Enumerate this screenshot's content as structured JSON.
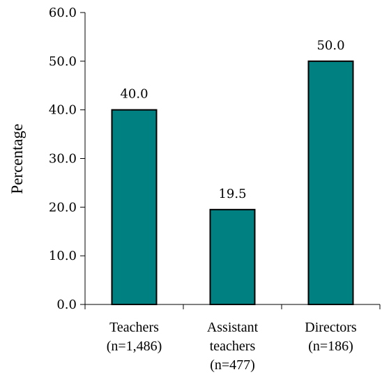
{
  "chart_data": {
    "type": "bar",
    "title": "",
    "xlabel": "",
    "ylabel": "Percentage",
    "ylim": [
      0,
      60
    ],
    "yticks": [
      "0.0",
      "10.0",
      "20.0",
      "30.0",
      "40.0",
      "50.0",
      "60.0"
    ],
    "grid": false,
    "legend": "none",
    "categories": [
      [
        "Teachers",
        "(n=1,486)"
      ],
      [
        "Assistant",
        "teachers",
        "(n=477)"
      ],
      [
        "Directors",
        "(n=186)"
      ]
    ],
    "values": [
      40.0,
      19.5,
      50.0
    ],
    "data_labels": [
      "40.0",
      "19.5",
      "50.0"
    ],
    "bar_color": "#008080",
    "bar_edge_color": "#000000"
  }
}
